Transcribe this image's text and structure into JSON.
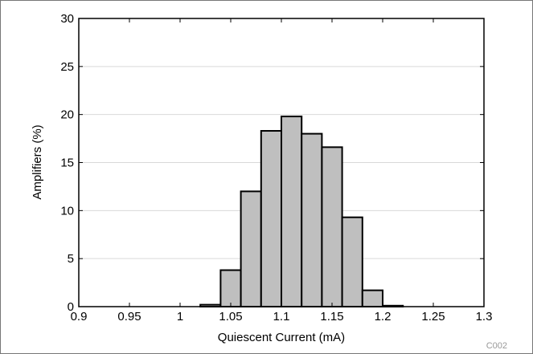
{
  "chart_data": {
    "type": "bar",
    "title": "",
    "xlabel": "Quiescent Current (mA)",
    "ylabel": "Amplifiers (%)",
    "xlim": [
      0.9,
      1.3
    ],
    "ylim": [
      0,
      30
    ],
    "x_ticks": [
      "0.9",
      "0.95",
      "1",
      "1.05",
      "1.1",
      "1.15",
      "1.2",
      "1.25",
      "1.3"
    ],
    "y_ticks": [
      "0",
      "5",
      "10",
      "15",
      "20",
      "25",
      "30"
    ],
    "grid": "horizontal",
    "bin_width": 0.02,
    "bins": [
      {
        "x0": 1.02,
        "value": 0.2
      },
      {
        "x0": 1.04,
        "value": 3.8
      },
      {
        "x0": 1.06,
        "value": 12.0
      },
      {
        "x0": 1.08,
        "value": 18.3
      },
      {
        "x0": 1.1,
        "value": 19.8
      },
      {
        "x0": 1.12,
        "value": 18.0
      },
      {
        "x0": 1.14,
        "value": 16.6
      },
      {
        "x0": 1.16,
        "value": 9.3
      },
      {
        "x0": 1.18,
        "value": 1.7
      },
      {
        "x0": 1.2,
        "value": 0.1
      }
    ],
    "bar_color": "#bfbfbf",
    "edge_color": "#000000"
  },
  "figure_code": "C002"
}
